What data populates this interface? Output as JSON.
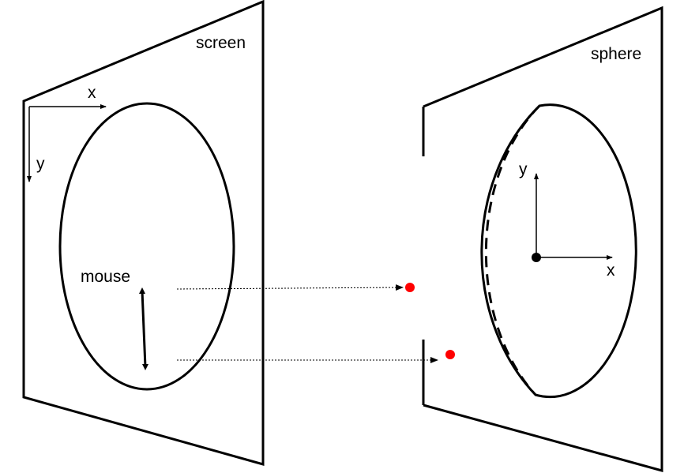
{
  "screen": {
    "label": "screen",
    "axis_x_label": "x",
    "axis_y_label": "y",
    "mouse_label": "mouse"
  },
  "sphere": {
    "label": "sphere",
    "axis_x_label": "x",
    "axis_y_label": "y"
  },
  "colors": {
    "line": "#000000",
    "point": "#ff0000",
    "background": "#ffffff"
  }
}
